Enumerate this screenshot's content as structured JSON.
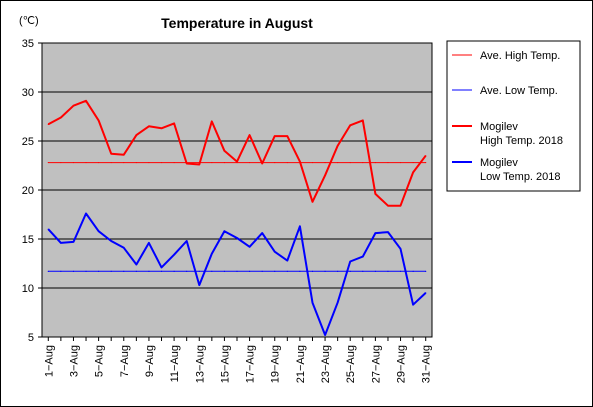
{
  "chart_data": {
    "type": "line",
    "title": "Temperature in August",
    "unit_label": "(℃)",
    "xlabel": "",
    "ylabel": "",
    "ylim": [
      5,
      35
    ],
    "yticks": [
      5,
      10,
      15,
      20,
      25,
      30,
      35
    ],
    "grid": true,
    "legend_position": "right",
    "plot_background": "#c0c0c0",
    "x": [
      "1−Aug",
      "2−Aug",
      "3−Aug",
      "4−Aug",
      "5−Aug",
      "6−Aug",
      "7−Aug",
      "8−Aug",
      "9−Aug",
      "10−Aug",
      "11−Aug",
      "12−Aug",
      "13−Aug",
      "14−Aug",
      "15−Aug",
      "16−Aug",
      "17−Aug",
      "18−Aug",
      "19−Aug",
      "20−Aug",
      "21−Aug",
      "22−Aug",
      "23−Aug",
      "24−Aug",
      "25−Aug",
      "26−Aug",
      "27−Aug",
      "28−Aug",
      "29−Aug",
      "30−Aug",
      "31−Aug"
    ],
    "xtick_labels": [
      "1−Aug",
      "3−Aug",
      "5−Aug",
      "7−Aug",
      "9−Aug",
      "11−Aug",
      "13−Aug",
      "15−Aug",
      "17−Aug",
      "19−Aug",
      "21−Aug",
      "23−Aug",
      "25−Aug",
      "27−Aug",
      "29−Aug",
      "31−Aug"
    ],
    "series": [
      {
        "name": "Ave. High Temp.",
        "color": "#ff0000",
        "width": 1,
        "values": [
          22.8,
          22.8,
          22.8,
          22.8,
          22.8,
          22.8,
          22.8,
          22.8,
          22.8,
          22.8,
          22.8,
          22.8,
          22.8,
          22.8,
          22.8,
          22.8,
          22.8,
          22.8,
          22.8,
          22.8,
          22.8,
          22.8,
          22.8,
          22.8,
          22.8,
          22.8,
          22.8,
          22.8,
          22.8,
          22.8,
          22.8
        ]
      },
      {
        "name": "Ave. Low Temp.",
        "color": "#0000ff",
        "width": 1,
        "values": [
          11.7,
          11.7,
          11.7,
          11.7,
          11.7,
          11.7,
          11.7,
          11.7,
          11.7,
          11.7,
          11.7,
          11.7,
          11.7,
          11.7,
          11.7,
          11.7,
          11.7,
          11.7,
          11.7,
          11.7,
          11.7,
          11.7,
          11.7,
          11.7,
          11.7,
          11.7,
          11.7,
          11.7,
          11.7,
          11.7,
          11.7
        ]
      },
      {
        "name_lines": [
          "Mogilev",
          "High Temp. 2018"
        ],
        "color": "#ff0000",
        "width": 2,
        "values": [
          26.7,
          27.4,
          28.6,
          29.1,
          27.1,
          23.7,
          23.6,
          25.6,
          26.5,
          26.3,
          26.8,
          22.7,
          22.6,
          27.0,
          24.0,
          22.9,
          25.6,
          22.7,
          25.5,
          25.5,
          22.9,
          18.8,
          21.5,
          24.5,
          26.6,
          27.1,
          19.6,
          18.4,
          18.4,
          21.8,
          23.5
        ]
      },
      {
        "name_lines": [
          "Mogilev",
          "Low Temp. 2018"
        ],
        "color": "#0000ff",
        "width": 2,
        "values": [
          16.0,
          14.6,
          14.7,
          17.6,
          15.8,
          14.8,
          14.1,
          12.4,
          14.6,
          12.1,
          13.4,
          14.8,
          10.3,
          13.5,
          15.8,
          15.1,
          14.2,
          15.6,
          13.7,
          12.8,
          16.3,
          8.5,
          5.2,
          8.5,
          12.7,
          13.2,
          15.6,
          15.7,
          14.0,
          8.3,
          9.5
        ]
      }
    ]
  }
}
